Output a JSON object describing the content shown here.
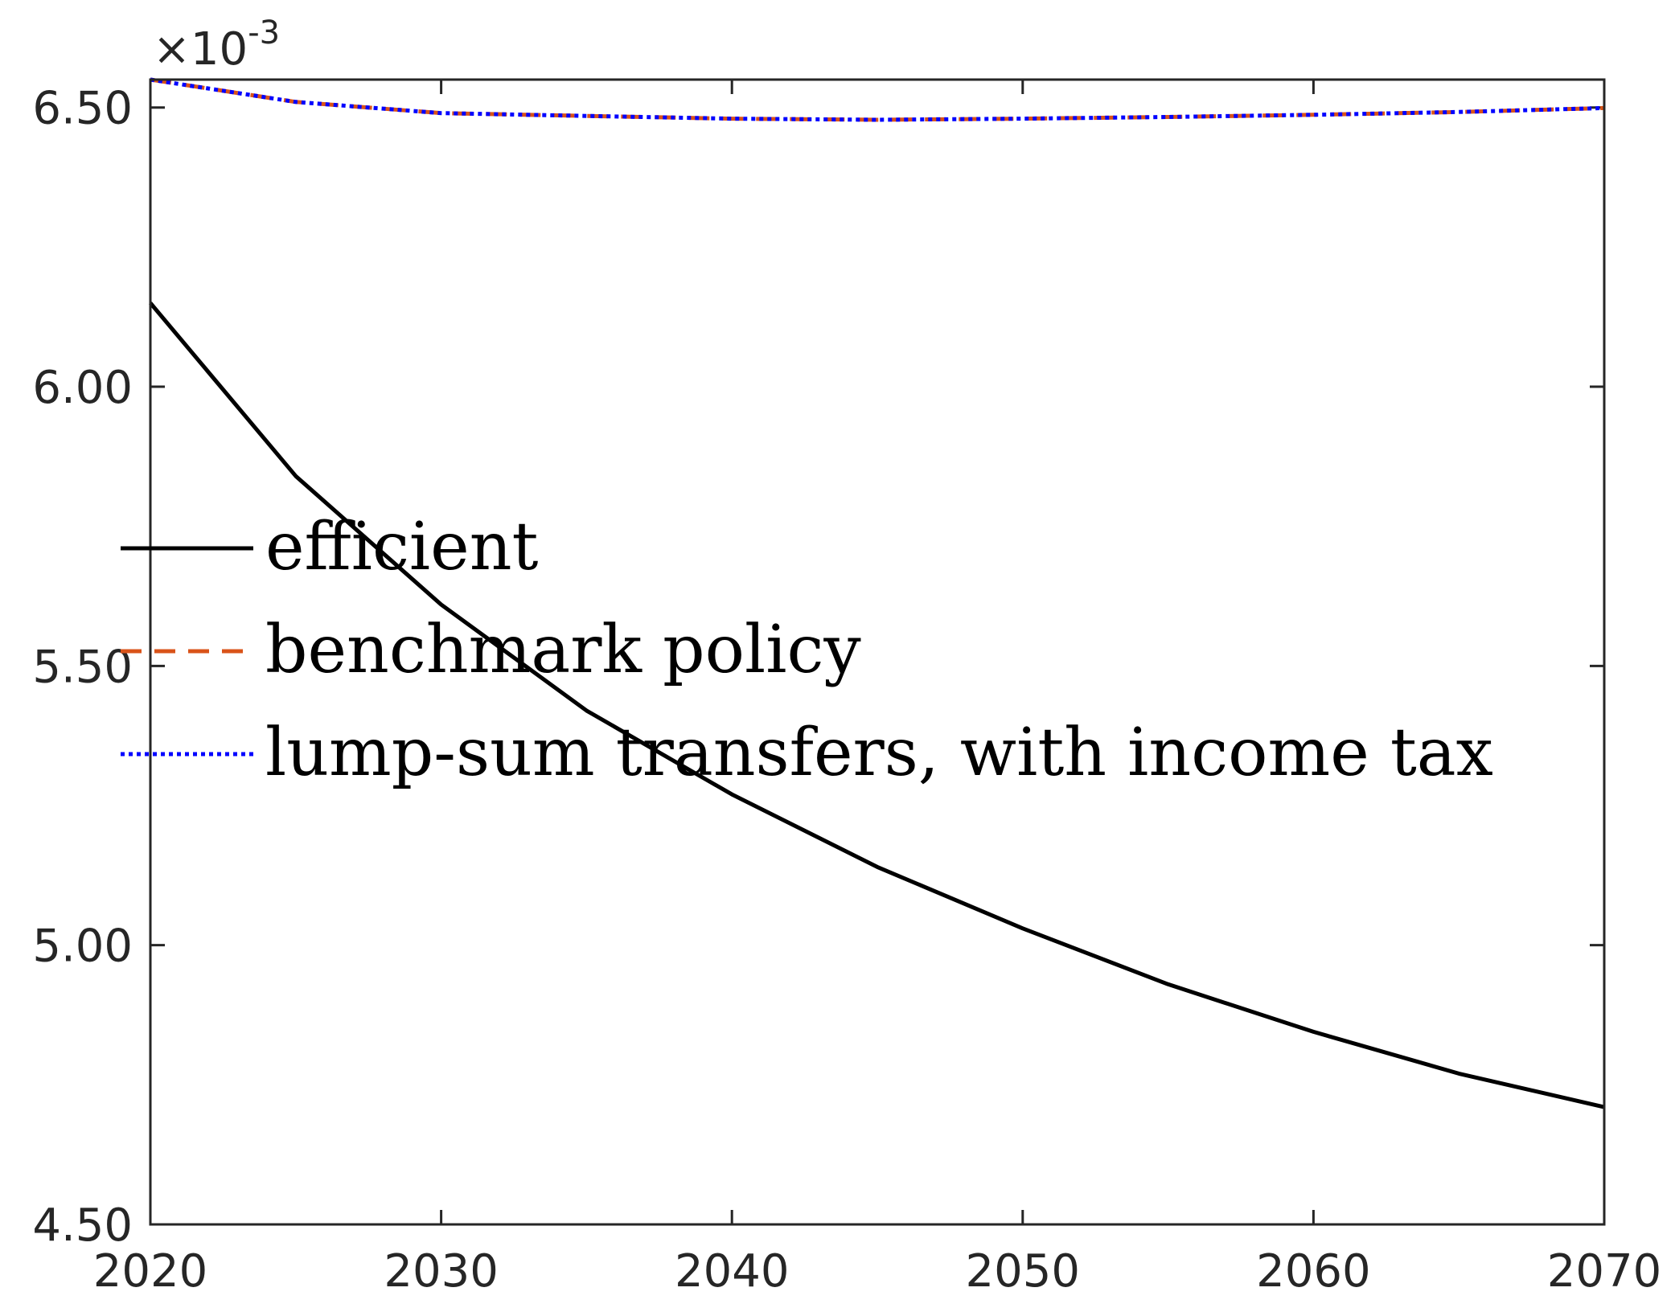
{
  "chart_data": {
    "type": "line",
    "title": "",
    "xlabel": "",
    "ylabel": "",
    "x": [
      2020,
      2025,
      2030,
      2035,
      2040,
      2045,
      2050,
      2055,
      2060,
      2065,
      2070
    ],
    "xlim": [
      2020,
      2070
    ],
    "ylim": [
      4.5,
      6.55
    ],
    "y_scale_factor": "×10",
    "y_scale_exponent": "-3",
    "xticks": [
      2020,
      2030,
      2040,
      2050,
      2060,
      2070
    ],
    "xtick_labels": [
      "2020",
      "2030",
      "2040",
      "2050",
      "2060",
      "2070"
    ],
    "yticks": [
      4.5,
      5.0,
      5.5,
      6.0,
      6.5
    ],
    "ytick_labels": [
      "4.50",
      "5.00",
      "5.50",
      "6.00",
      "6.50"
    ],
    "grid": false,
    "legend_placement": "center-left",
    "series": [
      {
        "name": "efficient",
        "color": "#000000",
        "style": "solid",
        "values": [
          6.15,
          5.84,
          5.61,
          5.42,
          5.27,
          5.14,
          5.03,
          4.93,
          4.845,
          4.77,
          4.71
        ]
      },
      {
        "name": "benchmark policy",
        "color": "#D95319",
        "style": "dashed",
        "values": [
          6.55,
          6.51,
          6.49,
          6.485,
          6.48,
          6.478,
          6.48,
          6.483,
          6.487,
          6.492,
          6.499
        ]
      },
      {
        "name": "lump-sum transfers, with income tax",
        "color": "#0000FF",
        "style": "dotted",
        "values": [
          6.55,
          6.51,
          6.49,
          6.485,
          6.48,
          6.478,
          6.48,
          6.483,
          6.487,
          6.492,
          6.499
        ]
      }
    ]
  }
}
